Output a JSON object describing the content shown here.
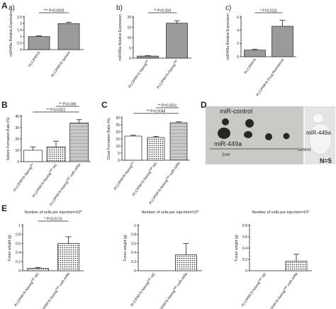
{
  "panels": {
    "a": {
      "letter": "A",
      "sublabel": "a)"
    },
    "b": {
      "sublabel": "b)"
    },
    "c": {
      "sublabel": "c)"
    },
    "B": {
      "letter": "B"
    },
    "C": {
      "letter": "C"
    },
    "D": {
      "letter": "D"
    },
    "E": {
      "letter": "E"
    }
  },
  "photo": {
    "label_control": "miR-control",
    "label_mir": "miR-449a",
    "label_mir_right": "miR-449a",
    "label_control_right": "control",
    "scale_label": "1cm",
    "n_label": "N=5"
  },
  "chart_data": [
    {
      "id": "a",
      "type": "bar",
      "categories": [
        "PLC/PRF/5",
        "PLC/PRF/5 Sphere"
      ],
      "values": [
        1.0,
        2.0
      ],
      "errors": [
        0.05,
        0.1
      ],
      "ylabel": "miR449a Relative Expression",
      "ylim": [
        0,
        2.5
      ],
      "yticks": [
        0.0,
        0.5,
        1.0,
        1.5,
        2.0,
        2.5
      ],
      "patterns": [
        "grey",
        "grey"
      ],
      "comparisons": [
        {
          "from": 0,
          "to": 1,
          "text": "*** P=0.0003"
        }
      ]
    },
    {
      "id": "b",
      "type": "bar",
      "categories": [
        "PLC/PRF/5-Nanog^low",
        "PLC/PRF/5-Nanog^high"
      ],
      "values": [
        1.0,
        17.0
      ],
      "errors": [
        0.2,
        1.2
      ],
      "ylabel": "miR449a Relative Expression",
      "ylim": [
        0,
        20
      ],
      "yticks": [
        0,
        5,
        10,
        15,
        20
      ],
      "patterns": [
        "grey",
        "grey"
      ],
      "comparisons": [
        {
          "from": 0,
          "to": 1,
          "text": "** P=0.004"
        }
      ]
    },
    {
      "id": "c",
      "type": "bar",
      "categories": [
        "PLC/PRF/5",
        "PLC/PRF/5 Drug Resistance"
      ],
      "values": [
        1.0,
        4.6
      ],
      "errors": [
        0.15,
        0.9
      ],
      "ylabel": "miR449a Relative Expression",
      "ylim": [
        0,
        6
      ],
      "yticks": [
        0,
        2,
        4,
        6
      ],
      "patterns": [
        "grey",
        "grey"
      ],
      "comparisons": [
        {
          "from": 0,
          "to": 1,
          "text": "* P=0.0111"
        }
      ]
    },
    {
      "id": "B",
      "type": "bar",
      "categories": [
        "PLC/PRF/5-Nanog^low",
        "PLC/PRF/5-Nanog^high-NC",
        "PLC/PRF/5-Nanog^high-miR-449a"
      ],
      "values": [
        10,
        13,
        34
      ],
      "errors": [
        3,
        5,
        3
      ],
      "ylabel": "Sphere Formation Rate (%)",
      "ylim": [
        0,
        40
      ],
      "yticks": [
        0,
        10,
        20,
        30,
        40
      ],
      "patterns": [
        "plain",
        "dots",
        "hlines"
      ],
      "comparisons": [
        {
          "from": 0,
          "to": 2,
          "text": "** P=0.0321"
        },
        {
          "from": 1,
          "to": 2,
          "text": "** P=0.006"
        }
      ]
    },
    {
      "id": "C",
      "type": "bar",
      "categories": [
        "PLC/PRF/5-Nanog^low",
        "PLC/PRF/5-Nanog^high-NC",
        "PLC/PRF/5-Nanog^high-miR-449a"
      ],
      "values": [
        17,
        16,
        26.5
      ],
      "errors": [
        0.6,
        0.8,
        0.6
      ],
      "ylabel": "Clone Formation Ratio (%)",
      "ylim": [
        0,
        30
      ],
      "yticks": [
        0,
        5,
        10,
        15,
        20,
        25,
        30
      ],
      "patterns": [
        "plain",
        "dots",
        "hlines"
      ],
      "comparisons": [
        {
          "from": 0,
          "to": 2,
          "text": "** P=0.0048"
        },
        {
          "from": 1,
          "to": 2,
          "text": "** P=0.0031"
        }
      ]
    },
    {
      "id": "E1",
      "type": "bar",
      "title": "Number of cells per injection=10^4",
      "categories": [
        "PLC/PRF/5-Nanog^high-NC",
        "PLC/PRF/5-Nanog^high-miR-449a"
      ],
      "values": [
        0.05,
        0.6
      ],
      "errors": [
        0.02,
        0.15
      ],
      "ylabel": "Tumor weight (g)",
      "ylim": [
        0,
        1.0
      ],
      "yticks": [
        0.0,
        0.2,
        0.4,
        0.6,
        0.8,
        1.0
      ],
      "patterns": [
        "dots",
        "dots"
      ],
      "comparisons": [
        {
          "from": 0,
          "to": 1,
          "text": "* P=0.0174"
        }
      ]
    },
    {
      "id": "E2",
      "type": "bar",
      "title": "Number of cells per injection=10^3",
      "categories": [
        "PLC/PRF/5-Nanog^high-NC",
        "PLC/PRF/5-Nanog^high-miR-449a"
      ],
      "values": [
        0,
        0.35
      ],
      "errors": [
        0,
        0.25
      ],
      "ylabel": "Tumor weight (g)",
      "ylim": [
        0,
        1.0
      ],
      "yticks": [
        0.0,
        0.2,
        0.4,
        0.6,
        0.8,
        1.0
      ],
      "patterns": [
        "dots",
        "dots"
      ],
      "comparisons": []
    },
    {
      "id": "E3",
      "type": "bar",
      "title": "Number of cells per injection=10^2",
      "categories": [
        "PLC/PRF/5-Nanog^high-NC",
        "PLC/PRF/5-Nanog^high-miR-449a"
      ],
      "values": [
        0,
        0.17
      ],
      "errors": [
        0,
        0.12
      ],
      "ylabel": "Tumor weight (g)",
      "ylim": [
        0,
        0.8
      ],
      "yticks": [
        0.0,
        0.2,
        0.4,
        0.6,
        0.8
      ],
      "patterns": [
        "dots",
        "dots"
      ],
      "comparisons": []
    }
  ]
}
